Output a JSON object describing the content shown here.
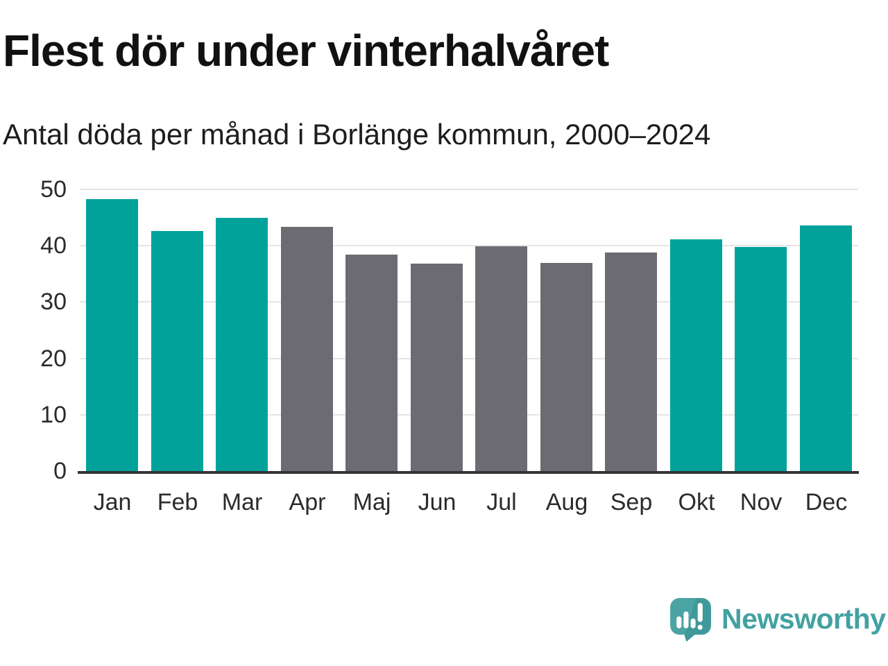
{
  "chart_data": {
    "type": "bar",
    "title": "Flest dör under vinterhalvåret",
    "subtitle": "Antal döda per månad i Borlänge kommun, 2000–2024",
    "categories": [
      "Jan",
      "Feb",
      "Mar",
      "Apr",
      "Maj",
      "Jun",
      "Jul",
      "Aug",
      "Sep",
      "Okt",
      "Nov",
      "Dec"
    ],
    "values": [
      48.3,
      42.6,
      44.9,
      43.3,
      38.4,
      36.8,
      39.9,
      36.9,
      38.8,
      41.1,
      39.8,
      43.6
    ],
    "bar_groups": [
      "winter",
      "winter",
      "winter",
      "summer",
      "summer",
      "summer",
      "summer",
      "summer",
      "summer",
      "winter",
      "winter",
      "winter"
    ],
    "palette": {
      "winter": "#00a29a",
      "summer": "#6c6b72"
    },
    "yticks": [
      0,
      10,
      20,
      30,
      40,
      50
    ],
    "ylim": [
      0,
      50
    ],
    "xlabel": "",
    "ylabel": "",
    "grid": "horizontal",
    "legend": "none",
    "grid_color": "#e5e5e5",
    "axis_color": "#333338",
    "tick_label_color": "#2b2b2b"
  },
  "branding": {
    "logo_text": "Newsworthy",
    "logo_color": "#43a1a2",
    "logo_icon": "speech-bubble-bar-chart-icon"
  }
}
